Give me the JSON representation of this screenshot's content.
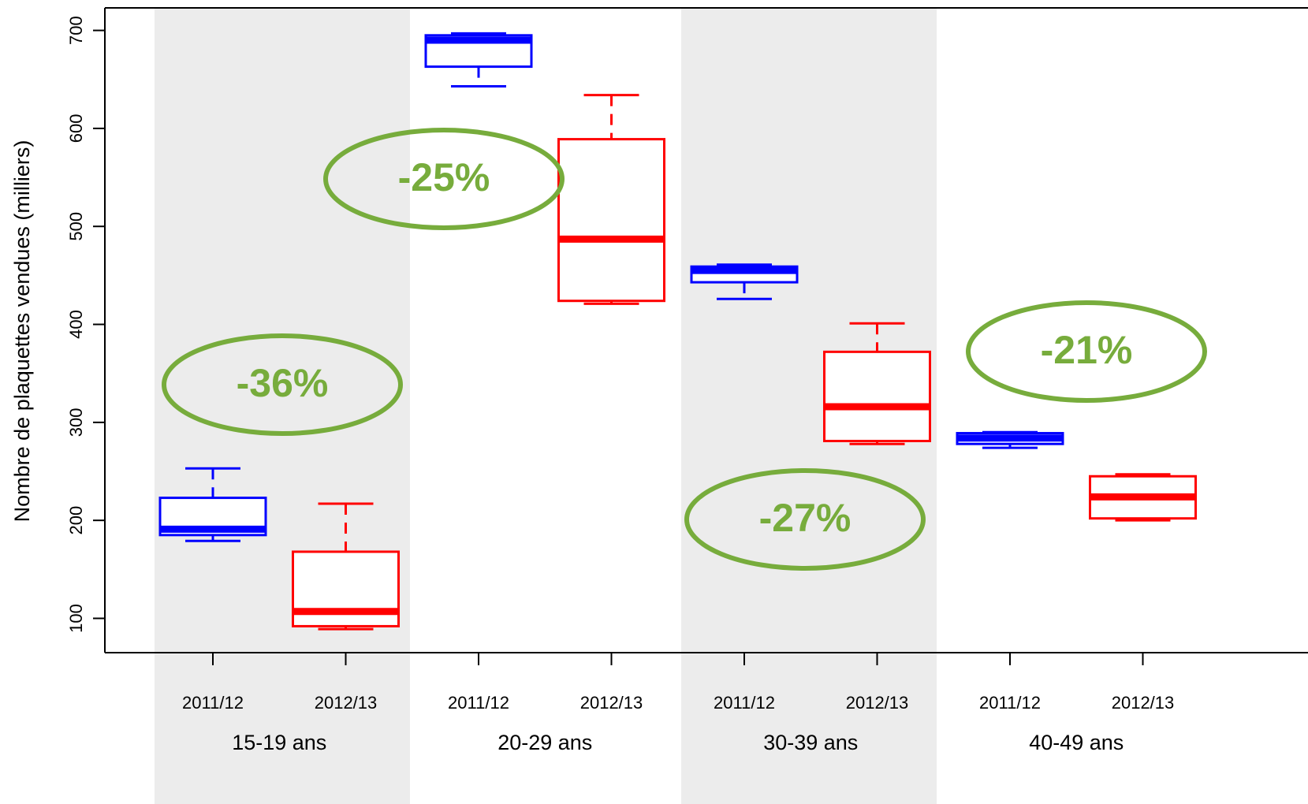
{
  "chart_data": {
    "type": "box",
    "ylabel": "Nombre de plaquettes vendues (milliers)",
    "categories": [
      "2011/12",
      "2012/13",
      "2011/12",
      "2012/13",
      "2011/12",
      "2012/13",
      "2011/12",
      "2012/13"
    ],
    "groups": [
      "15-19 ans",
      "20-29 ans",
      "30-39 ans",
      "40-49 ans"
    ],
    "colors": [
      "#0000ff",
      "#ff0000"
    ],
    "boxes": [
      {
        "min": 179,
        "q1": 185,
        "median": 191,
        "q3": 223,
        "max": 253
      },
      {
        "min": 89,
        "q1": 92,
        "median": 107,
        "q3": 168,
        "max": 217
      },
      {
        "min": 643,
        "q1": 663,
        "median": 690,
        "q3": 695,
        "max": 697
      },
      {
        "min": 421,
        "q1": 424,
        "median": 487,
        "q3": 589,
        "max": 634
      },
      {
        "min": 426,
        "q1": 443,
        "median": 455,
        "q3": 459,
        "max": 461
      },
      {
        "min": 278,
        "q1": 281,
        "median": 316,
        "q3": 372,
        "max": 401
      },
      {
        "min": 274,
        "q1": 278,
        "median": 284,
        "q3": 289,
        "max": 290
      },
      {
        "min": 200,
        "q1": 202,
        "median": 224,
        "q3": 245,
        "max": 247
      }
    ],
    "annotations": [
      "-36%",
      "-25%",
      "-27%",
      "-21%"
    ],
    "annotation_color": "#77ac3c",
    "ylim": [
      65,
      723
    ],
    "yticks": [
      100,
      200,
      300,
      400,
      500,
      600,
      700
    ]
  }
}
